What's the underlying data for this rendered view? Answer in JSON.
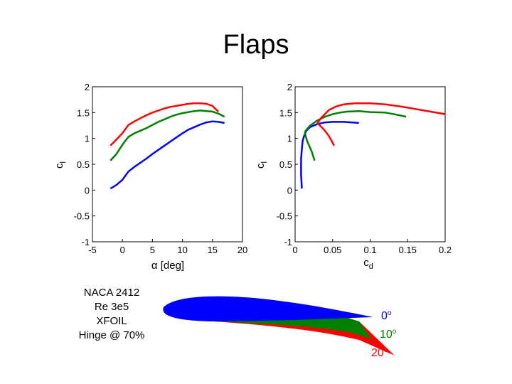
{
  "slide": {
    "title": "Flaps"
  },
  "info": {
    "lines": [
      "NACA 2412",
      "Re 3e5",
      "XFOIL",
      "Hinge @ 70%"
    ]
  },
  "legend": {
    "items": [
      {
        "value": "0",
        "unit": "o",
        "color": "#0000ff"
      },
      {
        "value": "10",
        "unit": "o",
        "color": "#008000"
      },
      {
        "value": "20",
        "unit": "o",
        "color": "#ff0000"
      }
    ]
  },
  "colors": {
    "flap_0": "#0000ff",
    "flap_10": "#008000",
    "flap_20": "#ff0000"
  },
  "chart_data": [
    {
      "type": "line",
      "xlabel": "α [deg]",
      "ylabel": "c_l",
      "xlim": [
        -5,
        20
      ],
      "ylim": [
        -1,
        2
      ],
      "xticks": [
        "-5",
        "0",
        "5",
        "10",
        "15",
        "20"
      ],
      "yticks": [
        "-1",
        "-0.5",
        "0",
        "0.5",
        "1",
        "1.5",
        "2"
      ],
      "grid": false,
      "series": [
        {
          "color": "#0000ff",
          "x": [
            -2,
            -1,
            0,
            0.5,
            1,
            2,
            3,
            4,
            5,
            6,
            7,
            8,
            9,
            10,
            11,
            12,
            13,
            14,
            15,
            16,
            17
          ],
          "y": [
            0.03,
            0.1,
            0.2,
            0.28,
            0.36,
            0.45,
            0.53,
            0.61,
            0.7,
            0.78,
            0.86,
            0.94,
            1.02,
            1.1,
            1.17,
            1.22,
            1.27,
            1.31,
            1.33,
            1.32,
            1.3
          ]
        },
        {
          "color": "#008000",
          "x": [
            -2,
            -1,
            0,
            1,
            2,
            3,
            4,
            5,
            6,
            7,
            8,
            9,
            10,
            11,
            12,
            13,
            14,
            15,
            16,
            17
          ],
          "y": [
            0.57,
            0.7,
            0.88,
            1.03,
            1.1,
            1.15,
            1.2,
            1.26,
            1.32,
            1.37,
            1.42,
            1.46,
            1.49,
            1.51,
            1.53,
            1.54,
            1.53,
            1.52,
            1.48,
            1.42
          ]
        },
        {
          "color": "#ff0000",
          "x": [
            -2,
            -1,
            0,
            1,
            2,
            3,
            4,
            5,
            6,
            7,
            8,
            9,
            10,
            11,
            12,
            13,
            14,
            15,
            15.5,
            16
          ],
          "y": [
            0.86,
            0.98,
            1.1,
            1.26,
            1.33,
            1.39,
            1.45,
            1.5,
            1.54,
            1.58,
            1.61,
            1.63,
            1.65,
            1.67,
            1.68,
            1.68,
            1.67,
            1.63,
            1.57,
            1.52
          ]
        }
      ]
    },
    {
      "type": "line",
      "xlabel": "c_d",
      "ylabel": "c_l",
      "xlim": [
        0,
        0.2
      ],
      "ylim": [
        -1,
        2
      ],
      "xticks": [
        "0",
        "0.05",
        "0.1",
        "0.15",
        "0.2"
      ],
      "yticks": [
        "-1",
        "-0.5",
        "0",
        "0.5",
        "1",
        "1.5",
        "2"
      ],
      "grid": false,
      "series": [
        {
          "color": "#0000ff",
          "x": [
            0.009,
            0.008,
            0.008,
            0.009,
            0.01,
            0.012,
            0.015,
            0.02,
            0.03,
            0.04,
            0.05,
            0.065,
            0.085
          ],
          "y": [
            0.03,
            0.3,
            0.6,
            0.8,
            0.95,
            1.05,
            1.15,
            1.22,
            1.28,
            1.31,
            1.32,
            1.32,
            1.3
          ]
        },
        {
          "color": "#008000",
          "x": [
            0.026,
            0.022,
            0.016,
            0.013,
            0.014,
            0.02,
            0.03,
            0.04,
            0.05,
            0.06,
            0.07,
            0.085,
            0.1,
            0.12,
            0.135,
            0.148
          ],
          "y": [
            0.57,
            0.75,
            0.95,
            1.1,
            1.15,
            1.25,
            1.35,
            1.42,
            1.47,
            1.5,
            1.52,
            1.53,
            1.51,
            1.5,
            1.46,
            1.42
          ]
        },
        {
          "color": "#ff0000",
          "x": [
            0.052,
            0.045,
            0.038,
            0.033,
            0.03,
            0.035,
            0.045,
            0.055,
            0.065,
            0.08,
            0.1,
            0.12,
            0.14,
            0.16,
            0.18,
            0.2
          ],
          "y": [
            0.86,
            1.05,
            1.18,
            1.25,
            1.3,
            1.4,
            1.55,
            1.62,
            1.66,
            1.68,
            1.68,
            1.66,
            1.62,
            1.57,
            1.52,
            1.47
          ]
        }
      ]
    }
  ]
}
